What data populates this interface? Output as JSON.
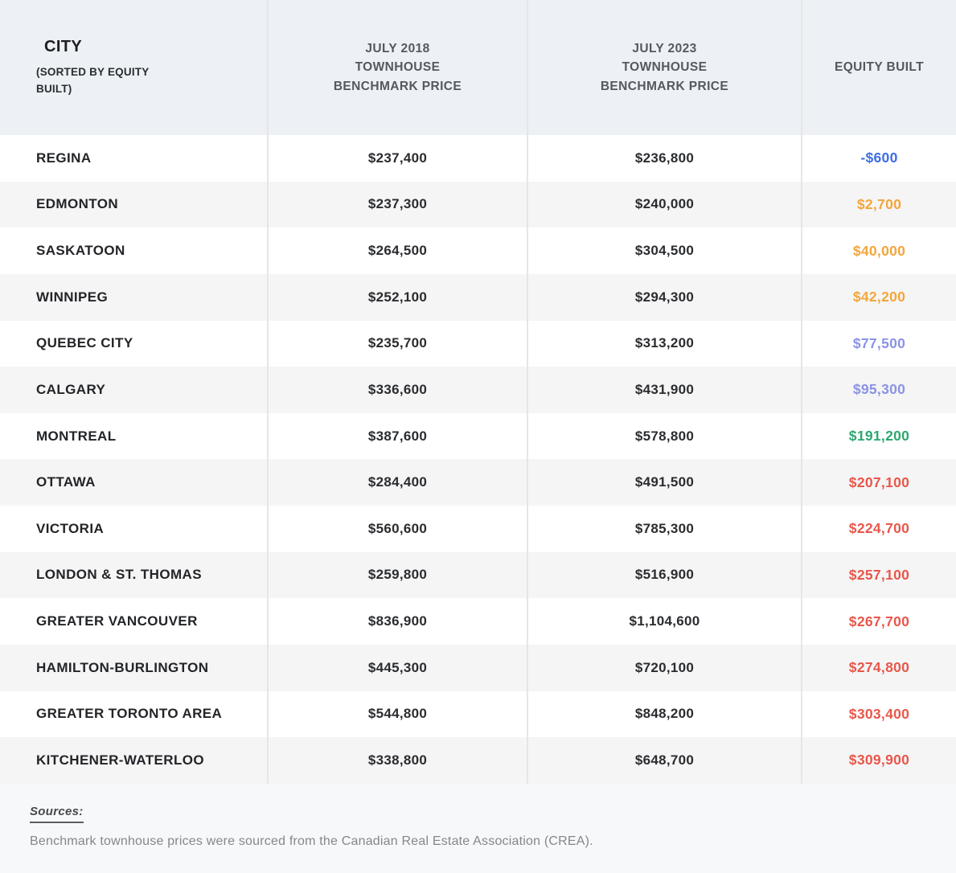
{
  "table": {
    "headers": {
      "city_title": "CITY",
      "city_subtitle": "(SORTED BY EQUITY\nBUILT)",
      "col_2018": "JULY 2018\nTOWNHOUSE\nBENCHMARK PRICE",
      "col_2023": "JULY 2023\nTOWNHOUSE\nBENCHMARK PRICE",
      "col_equity": "EQUITY BUILT"
    },
    "rows": [
      {
        "city": "REGINA",
        "price_2018": "$237,400",
        "price_2023": "$236,800",
        "equity": "-$600",
        "equity_color": "blue"
      },
      {
        "city": "EDMONTON",
        "price_2018": "$237,300",
        "price_2023": "$240,000",
        "equity": "$2,700",
        "equity_color": "amber"
      },
      {
        "city": "SASKATOON",
        "price_2018": "$264,500",
        "price_2023": "$304,500",
        "equity": "$40,000",
        "equity_color": "amber"
      },
      {
        "city": "WINNIPEG",
        "price_2018": "$252,100",
        "price_2023": "$294,300",
        "equity": "$42,200",
        "equity_color": "amber"
      },
      {
        "city": "QUEBEC CITY",
        "price_2018": "$235,700",
        "price_2023": "$313,200",
        "equity": "$77,500",
        "equity_color": "periwinkle"
      },
      {
        "city": "CALGARY",
        "price_2018": "$336,600",
        "price_2023": "$431,900",
        "equity": "$95,300",
        "equity_color": "periwinkle"
      },
      {
        "city": "MONTREAL",
        "price_2018": "$387,600",
        "price_2023": "$578,800",
        "equity": "$191,200",
        "equity_color": "green"
      },
      {
        "city": "OTTAWA",
        "price_2018": "$284,400",
        "price_2023": "$491,500",
        "equity": "$207,100",
        "equity_color": "red"
      },
      {
        "city": "VICTORIA",
        "price_2018": "$560,600",
        "price_2023": "$785,300",
        "equity": "$224,700",
        "equity_color": "red"
      },
      {
        "city": "LONDON & ST. THOMAS",
        "price_2018": "$259,800",
        "price_2023": "$516,900",
        "equity": "$257,100",
        "equity_color": "red"
      },
      {
        "city": "GREATER VANCOUVER",
        "price_2018": "$836,900",
        "price_2023": "$1,104,600",
        "equity": "$267,700",
        "equity_color": "red"
      },
      {
        "city": "HAMILTON-BURLINGTON",
        "price_2018": "$445,300",
        "price_2023": "$720,100",
        "equity": "$274,800",
        "equity_color": "red"
      },
      {
        "city": "GREATER TORONTO AREA",
        "price_2018": "$544,800",
        "price_2023": "$848,200",
        "equity": "$303,400",
        "equity_color": "red"
      },
      {
        "city": "KITCHENER-WATERLOO",
        "price_2018": "$338,800",
        "price_2023": "$648,700",
        "equity": "$309,900",
        "equity_color": "red"
      }
    ]
  },
  "colors": {
    "blue": "#3e6ee4",
    "amber": "#f2a63c",
    "periwinkle": "#8a93e4",
    "green": "#2ea76e",
    "red": "#e7574a",
    "header_bg": "#edf0f4",
    "alt_row_bg": "#f5f5f6",
    "divider": "#e4e6e9",
    "footer_bg": "#f7f8f9"
  },
  "footer": {
    "sources_label": "Sources:",
    "source_text": "Benchmark townhouse prices were sourced from the Canadian Real Estate Association (CREA)."
  },
  "chart_data": {
    "type": "table",
    "title": "Townhouse benchmark price equity built by city, July 2018 vs July 2023",
    "columns": [
      "CITY (SORTED BY EQUITY BUILT)",
      "JULY 2018 TOWNHOUSE BENCHMARK PRICE",
      "JULY 2023 TOWNHOUSE BENCHMARK PRICE",
      "EQUITY BUILT"
    ],
    "rows": [
      [
        "REGINA",
        237400,
        236800,
        -600
      ],
      [
        "EDMONTON",
        237300,
        240000,
        2700
      ],
      [
        "SASKATOON",
        264500,
        304500,
        40000
      ],
      [
        "WINNIPEG",
        252100,
        294300,
        42200
      ],
      [
        "QUEBEC CITY",
        235700,
        313200,
        77500
      ],
      [
        "CALGARY",
        336600,
        431900,
        95300
      ],
      [
        "MONTREAL",
        387600,
        578800,
        191200
      ],
      [
        "OTTAWA",
        284400,
        491500,
        207100
      ],
      [
        "VICTORIA",
        560600,
        785300,
        224700
      ],
      [
        "LONDON & ST. THOMAS",
        259800,
        516900,
        257100
      ],
      [
        "GREATER VANCOUVER",
        836900,
        1104600,
        267700
      ],
      [
        "HAMILTON-BURLINGTON",
        445300,
        720100,
        274800
      ],
      [
        "GREATER TORONTO AREA",
        544800,
        848200,
        303400
      ],
      [
        "KITCHENER-WATERLOO",
        338800,
        648700,
        309900
      ]
    ],
    "source_note": "Benchmark townhouse prices were sourced from the Canadian Real Estate Association (CREA)."
  }
}
